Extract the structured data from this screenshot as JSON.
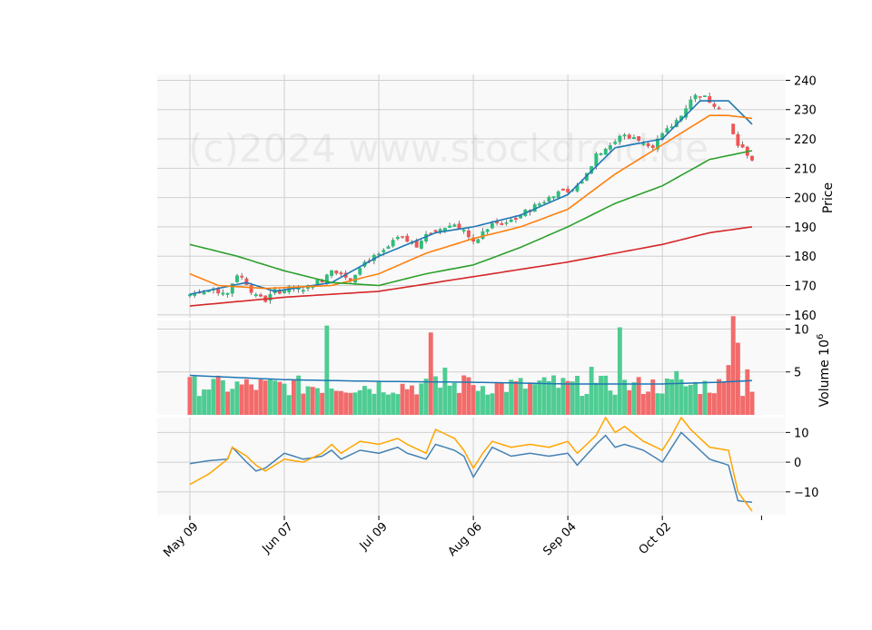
{
  "watermark": "(c)2024 www.stockdroid.de",
  "colors": {
    "panel_bg": "#f9f9f9",
    "grid": "#d0d0d0",
    "up": "#2ebd7c",
    "down": "#f05454",
    "up_volume": "#4fcc93",
    "down_volume": "#f26b6b",
    "ma_fast": "#1f77b4",
    "ma_mid": "#ff7f0e",
    "ma_slow": "#2ca02c",
    "ma_long": "#d62728",
    "vol_avg": "#1f77b4",
    "osc_line1": "#4682b4",
    "osc_line2": "#ffa500"
  },
  "chart_data": [
    {
      "type": "candlestick",
      "ylabel": "Price",
      "ylim": [
        159,
        242
      ],
      "yticks": [
        160,
        170,
        180,
        190,
        200,
        210,
        220,
        230,
        240
      ],
      "x_tick_labels": [
        "May 09",
        "Jun 07",
        "Jul 09",
        "Aug 06",
        "Sep 04",
        "Oct 02"
      ],
      "x_tick_index": [
        0,
        20,
        40,
        60,
        80,
        100
      ],
      "grid": true,
      "ohlc_anchors": [
        [
          0,
          167
        ],
        [
          4,
          168
        ],
        [
          8,
          168
        ],
        [
          10,
          174
        ],
        [
          12,
          171
        ],
        [
          14,
          166
        ],
        [
          16,
          165
        ],
        [
          18,
          168
        ],
        [
          22,
          169
        ],
        [
          24,
          169
        ],
        [
          28,
          172
        ],
        [
          30,
          176
        ],
        [
          34,
          172
        ],
        [
          36,
          177
        ],
        [
          38,
          179
        ],
        [
          40,
          180
        ],
        [
          44,
          186
        ],
        [
          46,
          185
        ],
        [
          48,
          184
        ],
        [
          50,
          187
        ],
        [
          54,
          190
        ],
        [
          56,
          191
        ],
        [
          58,
          189
        ],
        [
          60,
          184
        ],
        [
          62,
          188
        ],
        [
          64,
          191
        ],
        [
          66,
          191
        ],
        [
          70,
          194
        ],
        [
          74,
          198
        ],
        [
          76,
          200
        ],
        [
          78,
          203
        ],
        [
          80,
          201
        ],
        [
          82,
          204
        ],
        [
          84,
          208
        ],
        [
          86,
          215
        ],
        [
          88,
          217
        ],
        [
          90,
          219
        ],
        [
          92,
          222
        ],
        [
          94,
          220
        ],
        [
          96,
          219
        ],
        [
          98,
          218
        ],
        [
          100,
          221
        ],
        [
          104,
          228
        ],
        [
          106,
          234
        ],
        [
          108,
          235
        ],
        [
          110,
          233
        ],
        [
          112,
          231
        ],
        [
          116,
          218
        ],
        [
          118,
          215
        ],
        [
          120,
          211
        ]
      ],
      "series": [
        {
          "name": "MA fast",
          "anchors": [
            [
              0,
              167
            ],
            [
              12,
              171
            ],
            [
              18,
              168
            ],
            [
              30,
              171
            ],
            [
              40,
              180
            ],
            [
              52,
              188
            ],
            [
              60,
              190
            ],
            [
              70,
              194
            ],
            [
              80,
              201
            ],
            [
              90,
              217
            ],
            [
              100,
              220
            ],
            [
              108,
              233
            ],
            [
              114,
              233
            ],
            [
              119,
              225
            ]
          ]
        },
        {
          "name": "MA mid",
          "anchors": [
            [
              0,
              174
            ],
            [
              6,
              170
            ],
            [
              16,
              169
            ],
            [
              30,
              170
            ],
            [
              40,
              174
            ],
            [
              50,
              181
            ],
            [
              60,
              186
            ],
            [
              70,
              190
            ],
            [
              80,
              196
            ],
            [
              90,
              208
            ],
            [
              100,
              218
            ],
            [
              110,
              228
            ],
            [
              114,
              228
            ],
            [
              119,
              227
            ]
          ]
        },
        {
          "name": "MA slow",
          "anchors": [
            [
              0,
              184
            ],
            [
              10,
              180
            ],
            [
              20,
              175
            ],
            [
              30,
              171
            ],
            [
              40,
              170
            ],
            [
              50,
              174
            ],
            [
              60,
              177
            ],
            [
              70,
              183
            ],
            [
              80,
              190
            ],
            [
              90,
              198
            ],
            [
              100,
              204
            ],
            [
              110,
              213
            ],
            [
              119,
              216
            ]
          ]
        },
        {
          "name": "MA long",
          "anchors": [
            [
              0,
              163
            ],
            [
              20,
              166
            ],
            [
              40,
              168
            ],
            [
              60,
              173
            ],
            [
              80,
              178
            ],
            [
              100,
              184
            ],
            [
              110,
              188
            ],
            [
              119,
              190
            ]
          ]
        }
      ]
    },
    {
      "type": "bar",
      "ylabel": "Volume  10^6",
      "ylim": [
        0,
        11
      ],
      "yticks": [
        5,
        10
      ],
      "spikes": {
        "29": 10.4,
        "51": 9.6,
        "54": 5.5,
        "58": 4.6,
        "77": 4.6,
        "85": 5.6,
        "91": 10.2,
        "103": 5.1,
        "114": 5.8,
        "115": 11.5,
        "116": 8.4,
        "118": 5.3
      },
      "avg_anchors": [
        [
          0,
          4.6
        ],
        [
          20,
          4.1
        ],
        [
          40,
          3.9
        ],
        [
          60,
          3.8
        ],
        [
          80,
          3.6
        ],
        [
          100,
          3.6
        ],
        [
          112,
          3.8
        ],
        [
          119,
          4.0
        ]
      ]
    },
    {
      "type": "line",
      "ylim": [
        -18,
        15
      ],
      "yticks": [
        -10,
        0,
        10
      ],
      "series": [
        {
          "name": "line1",
          "anchors": [
            [
              0,
              -0.5
            ],
            [
              4,
              0.5
            ],
            [
              8,
              1
            ],
            [
              9,
              5
            ],
            [
              12,
              0
            ],
            [
              14,
              -3
            ],
            [
              16,
              -2
            ],
            [
              20,
              3
            ],
            [
              24,
              1
            ],
            [
              28,
              2
            ],
            [
              30,
              4
            ],
            [
              32,
              1
            ],
            [
              36,
              4
            ],
            [
              40,
              3
            ],
            [
              44,
              5
            ],
            [
              46,
              3
            ],
            [
              50,
              1
            ],
            [
              52,
              6
            ],
            [
              56,
              4
            ],
            [
              58,
              2
            ],
            [
              60,
              -5
            ],
            [
              62,
              0
            ],
            [
              64,
              5
            ],
            [
              68,
              2
            ],
            [
              72,
              3
            ],
            [
              76,
              2
            ],
            [
              80,
              3
            ],
            [
              82,
              -1
            ],
            [
              86,
              6
            ],
            [
              88,
              9
            ],
            [
              90,
              5
            ],
            [
              92,
              6
            ],
            [
              96,
              4
            ],
            [
              100,
              0
            ],
            [
              102,
              5
            ],
            [
              104,
              10
            ],
            [
              106,
              7
            ],
            [
              110,
              1
            ],
            [
              114,
              -1
            ],
            [
              116,
              -13
            ],
            [
              119,
              -13.5
            ]
          ]
        },
        {
          "name": "line2",
          "anchors": [
            [
              0,
              -7.5
            ],
            [
              4,
              -4
            ],
            [
              8,
              1
            ],
            [
              9,
              5
            ],
            [
              12,
              2
            ],
            [
              14,
              -1
            ],
            [
              16,
              -3
            ],
            [
              20,
              1
            ],
            [
              24,
              0
            ],
            [
              28,
              3
            ],
            [
              30,
              6
            ],
            [
              32,
              3
            ],
            [
              36,
              7
            ],
            [
              40,
              6
            ],
            [
              44,
              8
            ],
            [
              46,
              6
            ],
            [
              50,
              3
            ],
            [
              52,
              11
            ],
            [
              56,
              8
            ],
            [
              58,
              4
            ],
            [
              60,
              -2
            ],
            [
              62,
              3
            ],
            [
              64,
              7
            ],
            [
              68,
              5
            ],
            [
              72,
              6
            ],
            [
              76,
              5
            ],
            [
              80,
              7
            ],
            [
              82,
              3
            ],
            [
              86,
              9
            ],
            [
              88,
              15
            ],
            [
              90,
              10
            ],
            [
              92,
              12
            ],
            [
              96,
              7
            ],
            [
              100,
              4
            ],
            [
              102,
              9
            ],
            [
              104,
              15
            ],
            [
              106,
              11
            ],
            [
              110,
              5
            ],
            [
              114,
              4
            ],
            [
              116,
              -10
            ],
            [
              119,
              -16.5
            ]
          ]
        }
      ]
    }
  ]
}
